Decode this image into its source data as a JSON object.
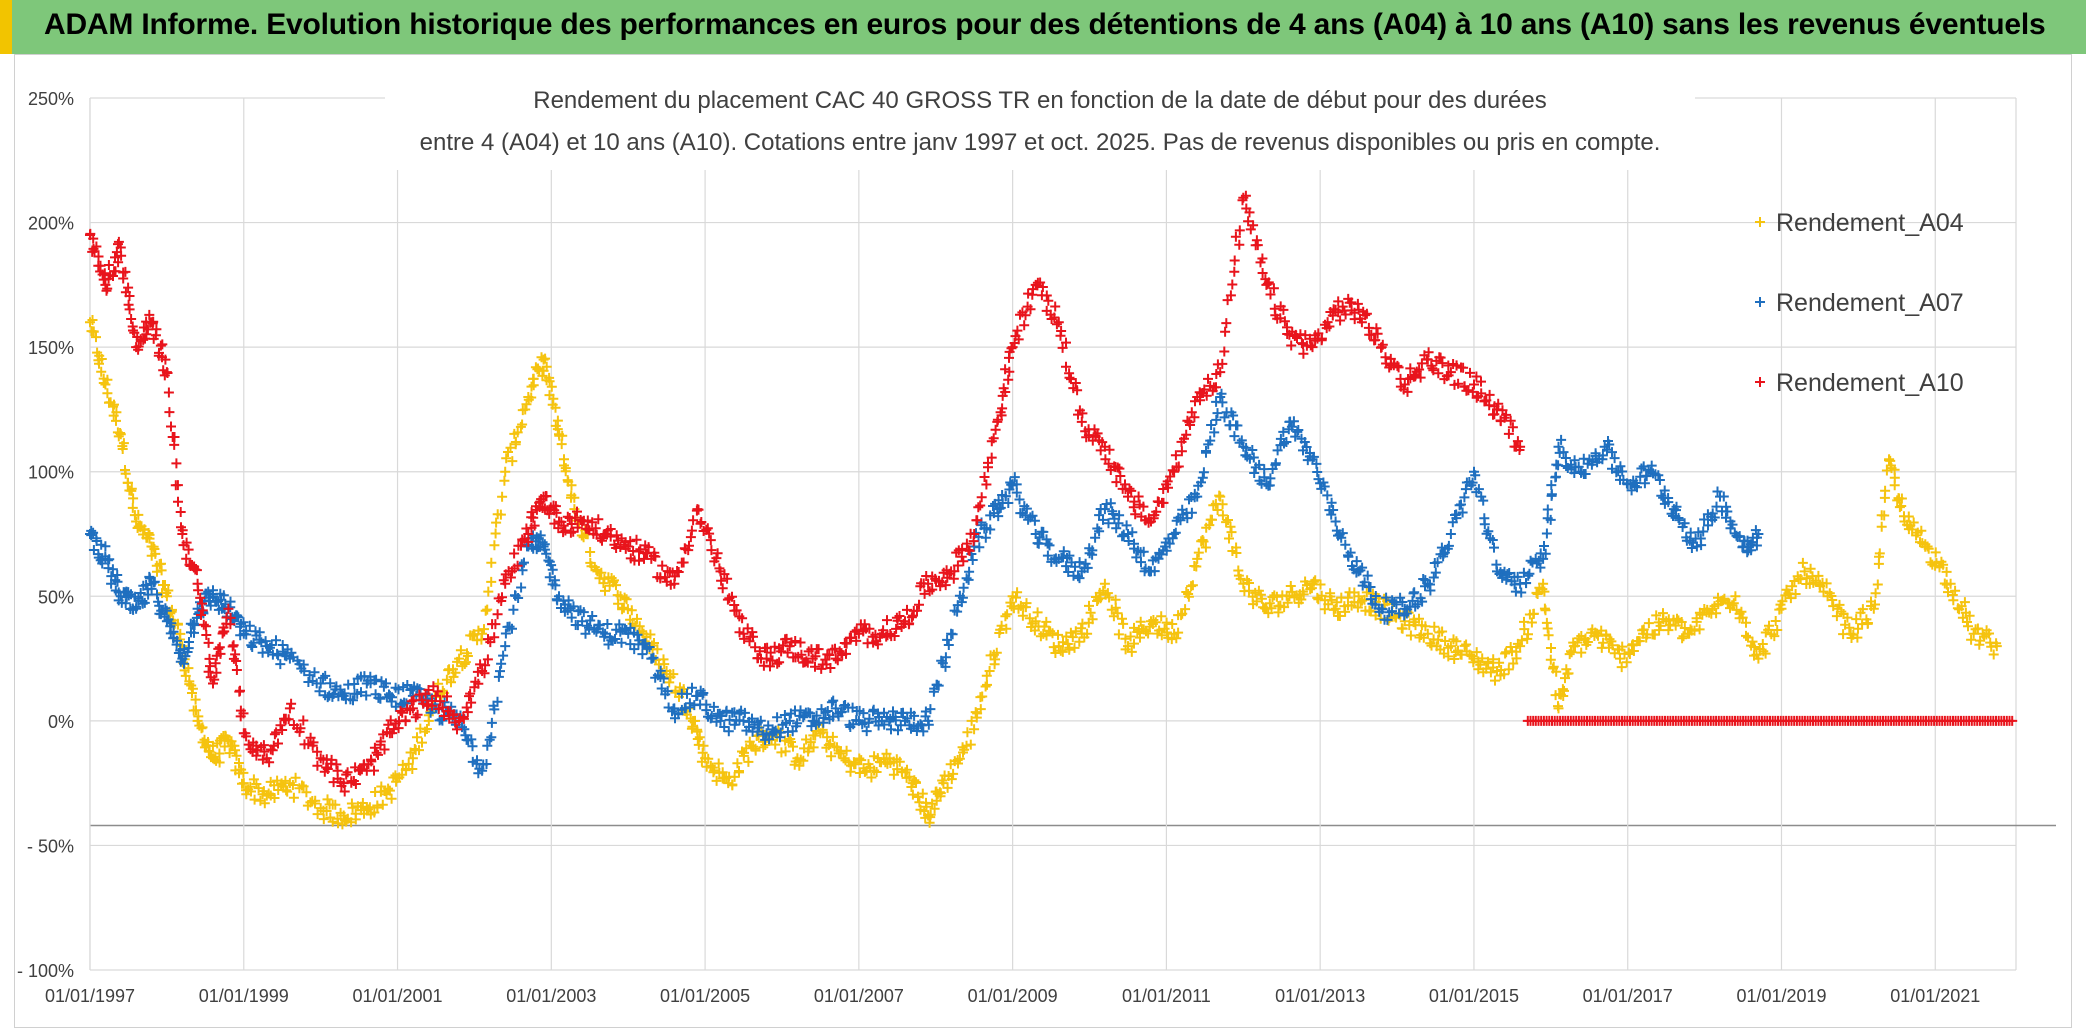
{
  "header": {
    "title": "ADAM Informe. Evolution historique des performances en euros pour des détentions de 4 ans (A04) à 10 ans (A10) sans les revenus éventuels"
  },
  "colors": {
    "banner_bg": "#7ec77a",
    "banner_accent": "#f2c400",
    "gridline": "#d9d9d9",
    "axis_text": "#404040",
    "series_a04": "#f5c30f",
    "series_a07": "#1f6fbf",
    "series_a10": "#e8141c"
  },
  "chart_data": {
    "type": "scatter",
    "title_line1": "Rendement du placement CAC 40 GROSS TR en fonction de la date de début pour des durées",
    "title_line2": "entre 4 (A04) et 10 ans (A10). Cotations entre janv 1997 et oct. 2025. Pas de revenus disponibles ou pris en compte.",
    "y_tick_labels": [
      "250%",
      "200%",
      "150%",
      "100%",
      "50%",
      "0%",
      "- 50%",
      "- 100%"
    ],
    "y_tick_values": [
      250,
      200,
      150,
      100,
      50,
      0,
      -50,
      -100
    ],
    "x_tick_labels": [
      "01/01/1997",
      "01/01/1999",
      "01/01/2001",
      "01/01/2003",
      "01/01/2005",
      "01/01/2007",
      "01/01/2009",
      "01/01/2011",
      "01/01/2013",
      "01/01/2015",
      "01/01/2017",
      "01/01/2019",
      "01/01/2021"
    ],
    "x_tick_years": [
      1997,
      1999,
      2001,
      2003,
      2005,
      2007,
      2009,
      2011,
      2013,
      2015,
      2017,
      2019,
      2021
    ],
    "xlim": [
      1997,
      2022.05
    ],
    "ylim": [
      -100,
      250
    ],
    "legend_position": "top-right",
    "series": [
      {
        "name": "Rendement_A04",
        "color": "#f5c30f",
        "x": [
          1997.0,
          1997.2,
          1997.4,
          1997.6,
          1997.8,
          1998.0,
          1998.2,
          1998.4,
          1998.6,
          1998.8,
          1999.0,
          1999.3,
          1999.6,
          2000.0,
          2000.3,
          2000.6,
          2000.9,
          2001.2,
          2001.5,
          2001.8,
          2002.1,
          2002.4,
          2002.7,
          2002.9,
          2003.1,
          2003.3,
          2003.6,
          2003.9,
          2004.2,
          2004.5,
          2004.8,
          2005.0,
          2005.3,
          2005.6,
          2005.9,
          2006.2,
          2006.5,
          2006.8,
          2007.1,
          2007.4,
          2007.7,
          2007.9,
          2008.1,
          2008.4,
          2008.7,
          2009.0,
          2009.3,
          2009.6,
          2009.9,
          2010.2,
          2010.5,
          2010.8,
          2011.1,
          2011.4,
          2011.7,
          2012.0,
          2012.3,
          2012.6,
          2012.9,
          2013.2,
          2013.5,
          2013.8,
          2014.1,
          2014.4,
          2014.7,
          2015.0,
          2015.3,
          2015.6,
          2015.9,
          2016.1,
          2016.3,
          2016.6,
          2016.9,
          2017.2,
          2017.5,
          2017.8,
          2018.1,
          2018.4,
          2018.7,
          2019.0,
          2019.3,
          2019.6,
          2019.9,
          2020.2,
          2020.4,
          2020.6,
          2020.9,
          2021.2,
          2021.5,
          2021.8
        ],
        "y": [
          160,
          135,
          115,
          80,
          70,
          50,
          30,
          0,
          -15,
          -8,
          -25,
          -30,
          -25,
          -35,
          -38,
          -35,
          -28,
          -15,
          10,
          25,
          35,
          100,
          130,
          145,
          115,
          85,
          60,
          50,
          35,
          20,
          5,
          -15,
          -25,
          -10,
          -5,
          -15,
          -5,
          -15,
          -20,
          -15,
          -25,
          -38,
          -25,
          -10,
          20,
          50,
          40,
          30,
          35,
          55,
          30,
          40,
          35,
          65,
          90,
          55,
          45,
          50,
          55,
          45,
          50,
          45,
          40,
          35,
          30,
          25,
          20,
          30,
          55,
          5,
          30,
          35,
          25,
          35,
          40,
          35,
          45,
          50,
          25,
          45,
          60,
          50,
          35,
          45,
          105,
          80,
          70,
          55,
          35,
          30
        ]
      },
      {
        "name": "Rendement_A07",
        "color": "#1f6fbf",
        "x": [
          1997.0,
          1997.2,
          1997.4,
          1997.6,
          1997.8,
          1998.0,
          1998.2,
          1998.4,
          1998.6,
          1998.8,
          1999.0,
          1999.3,
          1999.6,
          2000.0,
          2000.3,
          2000.6,
          2000.9,
          2001.2,
          2001.5,
          2001.8,
          2002.1,
          2002.4,
          2002.7,
          2002.9,
          2003.1,
          2003.4,
          2003.7,
          2004.0,
          2004.3,
          2004.6,
          2004.9,
          2005.2,
          2005.5,
          2005.8,
          2006.1,
          2006.4,
          2006.7,
          2007.0,
          2007.3,
          2007.6,
          2007.9,
          2008.2,
          2008.5,
          2008.8,
          2009.0,
          2009.3,
          2009.6,
          2009.9,
          2010.2,
          2010.5,
          2010.8,
          2011.1,
          2011.4,
          2011.7,
          2012.0,
          2012.3,
          2012.6,
          2012.9,
          2013.2,
          2013.5,
          2013.8,
          2014.1,
          2014.4,
          2014.7,
          2015.0,
          2015.3,
          2015.6,
          2015.9,
          2016.1,
          2016.4,
          2016.7,
          2017.0,
          2017.3,
          2017.6,
          2017.9,
          2018.2,
          2018.5,
          2018.7
        ],
        "y": [
          75,
          65,
          50,
          45,
          55,
          40,
          25,
          45,
          50,
          45,
          35,
          30,
          25,
          15,
          10,
          15,
          10,
          10,
          5,
          0,
          -20,
          30,
          70,
          70,
          50,
          40,
          35,
          35,
          25,
          5,
          10,
          0,
          0,
          -5,
          0,
          0,
          5,
          0,
          0,
          0,
          0,
          35,
          70,
          85,
          95,
          75,
          65,
          60,
          85,
          75,
          60,
          75,
          90,
          130,
          110,
          95,
          120,
          105,
          80,
          60,
          45,
          45,
          55,
          75,
          100,
          60,
          55,
          65,
          110,
          100,
          110,
          95,
          100,
          85,
          70,
          90,
          70,
          75
        ]
      },
      {
        "name": "Rendement_A10",
        "color": "#e8141c",
        "x": [
          1997.0,
          1997.2,
          1997.4,
          1997.6,
          1997.8,
          1998.0,
          1998.2,
          1998.4,
          1998.6,
          1998.8,
          1999.0,
          1999.3,
          1999.6,
          2000.0,
          2000.3,
          2000.6,
          2000.9,
          2001.2,
          2001.5,
          2001.8,
          2002.1,
          2002.4,
          2002.7,
          2002.9,
          2003.1,
          2003.4,
          2003.7,
          2004.0,
          2004.3,
          2004.6,
          2004.9,
          2005.2,
          2005.5,
          2005.8,
          2006.1,
          2006.4,
          2006.7,
          2007.0,
          2007.3,
          2007.6,
          2007.9,
          2008.2,
          2008.5,
          2008.8,
          2009.0,
          2009.3,
          2009.6,
          2009.9,
          2010.2,
          2010.5,
          2010.8,
          2011.1,
          2011.4,
          2011.7,
          2012.0,
          2012.3,
          2012.6,
          2012.9,
          2013.2,
          2013.5,
          2013.8,
          2014.1,
          2014.4,
          2014.7,
          2015.0,
          2015.3,
          2015.6
        ],
        "y": [
          195,
          175,
          190,
          150,
          160,
          140,
          75,
          55,
          15,
          45,
          -5,
          -15,
          5,
          -15,
          -25,
          -20,
          -5,
          5,
          10,
          0,
          20,
          55,
          75,
          90,
          80,
          80,
          75,
          70,
          65,
          55,
          85,
          60,
          35,
          25,
          30,
          25,
          25,
          35,
          35,
          40,
          55,
          60,
          75,
          120,
          150,
          175,
          160,
          120,
          110,
          90,
          80,
          100,
          130,
          140,
          210,
          175,
          155,
          150,
          165,
          165,
          150,
          135,
          145,
          140,
          135,
          125,
          110
        ]
      },
      {
        "name": "Rendement_A10 (0% segment)",
        "color": "#e8141c",
        "x_range": [
          2015.7,
          2022.0
        ],
        "y": 0
      }
    ]
  }
}
